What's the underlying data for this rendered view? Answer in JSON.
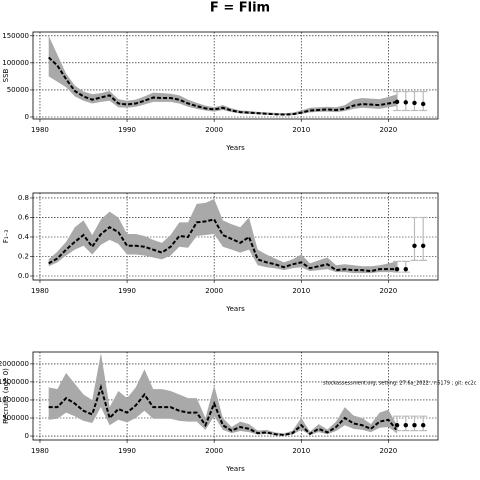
{
  "title": "F = Flim",
  "chart_data": [
    {
      "type": "line",
      "ylabel": "SSB",
      "xlabel": "Years",
      "xlim": [
        1979.2,
        2025.7
      ],
      "xticks": [
        1980,
        1990,
        2000,
        2010,
        2020
      ],
      "ylim": [
        -3700,
        157000
      ],
      "yticks": [
        0,
        50000,
        100000,
        150000
      ],
      "grid": true,
      "x": [
        1981,
        1982,
        1983,
        1984,
        1985,
        1986,
        1987,
        1988,
        1989,
        1990,
        1991,
        1992,
        1993,
        1994,
        1995,
        1996,
        1997,
        1998,
        1999,
        2000,
        2001,
        2002,
        2003,
        2004,
        2005,
        2006,
        2007,
        2008,
        2009,
        2010,
        2011,
        2012,
        2013,
        2014,
        2015,
        2016,
        2017,
        2018,
        2019,
        2020,
        2021
      ],
      "values": [
        110000,
        95000,
        70000,
        48000,
        38000,
        32000,
        36000,
        40000,
        25000,
        23000,
        25000,
        30000,
        36000,
        35000,
        35000,
        32000,
        25000,
        20000,
        16000,
        14000,
        17000,
        12000,
        9000,
        8000,
        7000,
        6000,
        5000,
        4500,
        5000,
        8000,
        12000,
        13000,
        14000,
        13000,
        15000,
        21000,
        24000,
        23000,
        22000,
        25000,
        28000
      ],
      "upper": [
        150000,
        115000,
        80000,
        58000,
        47000,
        42000,
        44000,
        48000,
        33000,
        30000,
        32000,
        38000,
        45000,
        44000,
        43000,
        40000,
        32000,
        26000,
        21000,
        18000,
        22000,
        16000,
        12000,
        11000,
        9500,
        8500,
        7500,
        7000,
        8000,
        12000,
        17000,
        18000,
        19000,
        18000,
        22000,
        32000,
        35000,
        34000,
        33000,
        37000,
        42000
      ],
      "lower": [
        75000,
        65000,
        55000,
        38000,
        30000,
        25000,
        28000,
        30000,
        18000,
        17000,
        19000,
        23000,
        28000,
        28000,
        28000,
        25000,
        19000,
        15000,
        12000,
        10000,
        13000,
        9000,
        6500,
        5500,
        5000,
        4200,
        3800,
        3300,
        3500,
        5500,
        8500,
        9500,
        10000,
        9000,
        11000,
        15000,
        17000,
        16000,
        15000,
        18000,
        20000
      ],
      "forecast": {
        "x": [
          2021,
          2022,
          2023,
          2024
        ],
        "values": [
          28000,
          27000,
          26000,
          24000
        ],
        "lower": [
          12000,
          12000,
          12000,
          12000
        ],
        "upper": [
          47000,
          47000,
          47000,
          47000
        ]
      }
    },
    {
      "type": "line",
      "ylabel": "F₁₋₃",
      "xlabel": "Years",
      "xlim": [
        1979.2,
        2025.7
      ],
      "xticks": [
        1980,
        1990,
        2000,
        2010,
        2020
      ],
      "ylim": [
        -0.041,
        0.851
      ],
      "yticks": [
        {
          "value": 0,
          "label": "0.0"
        },
        0.2,
        0.4,
        0.6,
        0.8
      ],
      "grid": true,
      "x": [
        1981,
        1982,
        1983,
        1984,
        1985,
        1986,
        1987,
        1988,
        1989,
        1990,
        1991,
        1992,
        1993,
        1994,
        1995,
        1996,
        1997,
        1998,
        1999,
        2000,
        2001,
        2002,
        2003,
        2004,
        2005,
        2006,
        2007,
        2008,
        2009,
        2010,
        2011,
        2012,
        2013,
        2014,
        2015,
        2016,
        2017,
        2018,
        2019,
        2020,
        2021
      ],
      "values": [
        0.13,
        0.18,
        0.27,
        0.35,
        0.42,
        0.3,
        0.43,
        0.5,
        0.45,
        0.31,
        0.31,
        0.3,
        0.27,
        0.24,
        0.3,
        0.41,
        0.4,
        0.55,
        0.56,
        0.58,
        0.42,
        0.38,
        0.34,
        0.4,
        0.17,
        0.14,
        0.12,
        0.09,
        0.12,
        0.14,
        0.08,
        0.1,
        0.12,
        0.06,
        0.07,
        0.06,
        0.06,
        0.05,
        0.07,
        0.07,
        0.07
      ],
      "upper": [
        0.17,
        0.25,
        0.35,
        0.5,
        0.57,
        0.42,
        0.58,
        0.66,
        0.6,
        0.43,
        0.43,
        0.41,
        0.37,
        0.34,
        0.42,
        0.55,
        0.55,
        0.74,
        0.75,
        0.79,
        0.57,
        0.53,
        0.5,
        0.6,
        0.27,
        0.22,
        0.18,
        0.14,
        0.17,
        0.22,
        0.13,
        0.16,
        0.19,
        0.11,
        0.12,
        0.11,
        0.1,
        0.1,
        0.11,
        0.13,
        0.15
      ],
      "lower": [
        0.1,
        0.14,
        0.21,
        0.27,
        0.31,
        0.22,
        0.32,
        0.37,
        0.33,
        0.22,
        0.22,
        0.21,
        0.19,
        0.17,
        0.21,
        0.3,
        0.29,
        0.41,
        0.42,
        0.43,
        0.3,
        0.27,
        0.24,
        0.27,
        0.11,
        0.09,
        0.08,
        0.06,
        0.08,
        0.09,
        0.05,
        0.06,
        0.07,
        0.04,
        0.04,
        0.03,
        0.03,
        0.03,
        0.04,
        0.04,
        0.04
      ],
      "forecast": {
        "x": [
          2021,
          2022,
          2023,
          2024
        ],
        "values": [
          0.07,
          0.07,
          0.31,
          0.31
        ],
        "lower": [
          0.04,
          0.04,
          0.16,
          0.16
        ],
        "upper": [
          0.15,
          0.15,
          0.6,
          0.6
        ]
      }
    },
    {
      "type": "line",
      "ylabel": "Recruits (age 0)",
      "xlabel": "Years",
      "annotation": "stockassessment.org, setting: 27.6a_2022 , r:6179 ; git: ec2c",
      "xlim": [
        1979.2,
        2025.7
      ],
      "xticks": [
        1980,
        1990,
        2000,
        2010,
        2020
      ],
      "ylim": [
        -110000,
        2330000
      ],
      "yticks": [
        0,
        500000,
        1000000,
        1500000,
        2000000
      ],
      "grid": true,
      "x": [
        1981,
        1982,
        1983,
        1984,
        1985,
        1986,
        1987,
        1988,
        1989,
        1990,
        1991,
        1992,
        1993,
        1994,
        1995,
        1996,
        1997,
        1998,
        1999,
        2000,
        2001,
        2002,
        2003,
        2004,
        2005,
        2006,
        2007,
        2008,
        2009,
        2010,
        2011,
        2012,
        2013,
        2014,
        2015,
        2016,
        2017,
        2018,
        2019,
        2020,
        2021
      ],
      "values": [
        800000,
        800000,
        1050000,
        900000,
        700000,
        600000,
        1350000,
        500000,
        750000,
        650000,
        850000,
        1150000,
        800000,
        800000,
        800000,
        700000,
        650000,
        650000,
        300000,
        900000,
        300000,
        150000,
        250000,
        200000,
        80000,
        100000,
        50000,
        30000,
        80000,
        300000,
        60000,
        200000,
        100000,
        250000,
        500000,
        350000,
        300000,
        200000,
        400000,
        450000,
        150000
      ],
      "upper": [
        1350000,
        1300000,
        1750000,
        1450000,
        1150000,
        1000000,
        2300000,
        800000,
        1250000,
        1050000,
        1350000,
        1850000,
        1300000,
        1300000,
        1250000,
        1150000,
        1050000,
        1050000,
        500000,
        1400000,
        500000,
        250000,
        400000,
        330000,
        150000,
        170000,
        100000,
        70000,
        150000,
        500000,
        120000,
        330000,
        180000,
        400000,
        800000,
        570000,
        500000,
        330000,
        650000,
        730000,
        300000
      ],
      "lower": [
        450000,
        480000,
        650000,
        550000,
        420000,
        360000,
        800000,
        300000,
        450000,
        380000,
        500000,
        700000,
        480000,
        480000,
        480000,
        420000,
        400000,
        400000,
        170000,
        550000,
        170000,
        80000,
        140000,
        110000,
        40000,
        55000,
        25000,
        12000,
        40000,
        170000,
        30000,
        110000,
        50000,
        140000,
        300000,
        200000,
        170000,
        110000,
        230000,
        250000,
        70000
      ],
      "forecast": {
        "x": [
          2021,
          2022,
          2023,
          2024
        ],
        "values": [
          300000,
          300000,
          300000,
          300000
        ],
        "lower": [
          150000,
          150000,
          150000,
          150000
        ],
        "upper": [
          550000,
          550000,
          550000,
          550000
        ]
      }
    }
  ]
}
